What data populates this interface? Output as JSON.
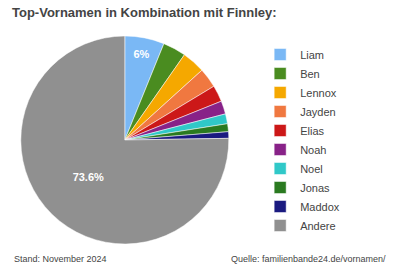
{
  "chart_data": {
    "type": "pie",
    "title": "Top-Vornamen in Kombination mit Finnley:",
    "categories": [
      "Liam",
      "Ben",
      "Lennox",
      "Jayden",
      "Elias",
      "Noah",
      "Noel",
      "Jonas",
      "Maddox",
      "Andere"
    ],
    "values": [
      6.0,
      3.5,
      3.5,
      3.0,
      2.5,
      2.0,
      1.5,
      1.2,
      1.0,
      73.6
    ],
    "value_labels": [
      "6%",
      null,
      null,
      null,
      null,
      null,
      null,
      null,
      null,
      "73.6%"
    ],
    "data_labels": true,
    "colors": [
      "#7ab8f5",
      "#4a8c20",
      "#f5a800",
      "#f07840",
      "#cc1818",
      "#882288",
      "#30c8c8",
      "#2a7a20",
      "#1a1a80",
      "#909090"
    ],
    "legend": "right",
    "annotations": [
      "Stand: November 2024",
      "Quelle: familienbande24.de/vornamen/"
    ]
  }
}
